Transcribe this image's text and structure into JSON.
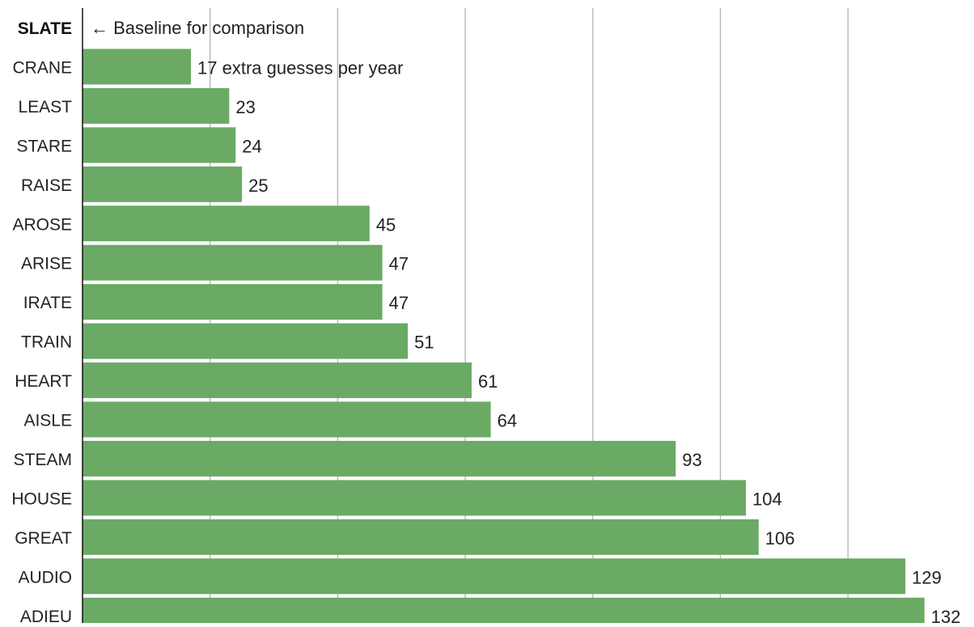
{
  "chart_data": {
    "type": "bar",
    "orientation": "horizontal",
    "baseline_category": "SLATE",
    "baseline_note": "← Baseline for comparison",
    "categories": [
      "CRANE",
      "LEAST",
      "STARE",
      "RAISE",
      "AROSE",
      "ARISE",
      "IRATE",
      "TRAIN",
      "HEART",
      "AISLE",
      "STEAM",
      "HOUSE",
      "GREAT",
      "AUDIO",
      "ADIEU"
    ],
    "values": [
      17,
      23,
      24,
      25,
      45,
      47,
      47,
      51,
      61,
      64,
      93,
      104,
      106,
      129,
      132
    ],
    "value_labels": [
      "17 extra guesses per year",
      "23",
      "24",
      "25",
      "45",
      "47",
      "47",
      "51",
      "61",
      "64",
      "93",
      "104",
      "106",
      "129",
      "132"
    ],
    "xlim": [
      0,
      139
    ],
    "gridlines": [
      20,
      40,
      60,
      80,
      100,
      120
    ],
    "grid": true,
    "bar_color": "#6aaa64",
    "title": "",
    "xlabel": "",
    "ylabel": ""
  }
}
